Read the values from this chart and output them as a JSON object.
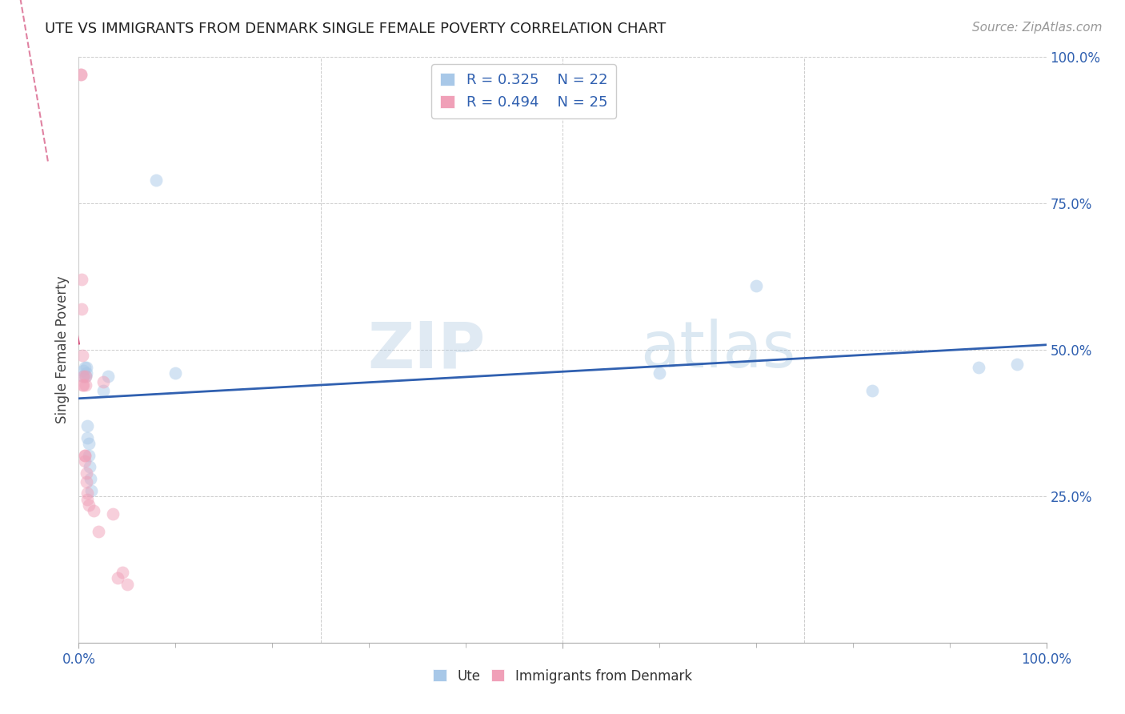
{
  "title": "UTE VS IMMIGRANTS FROM DENMARK SINGLE FEMALE POVERTY CORRELATION CHART",
  "source": "Source: ZipAtlas.com",
  "ylabel": "Single Female Poverty",
  "xlim": [
    0,
    1
  ],
  "ylim": [
    0,
    1
  ],
  "color_ute": "#a8c8e8",
  "color_denmark": "#f0a0b8",
  "color_line_ute": "#3060b0",
  "color_line_denmark": "#d04070",
  "watermark_text": "ZIP",
  "watermark_text2": "atlas",
  "legend_r1": "R = 0.325",
  "legend_n1": "N = 22",
  "legend_r2": "R = 0.494",
  "legend_n2": "N = 25",
  "ute_x": [
    0.005,
    0.005,
    0.006,
    0.007,
    0.008,
    0.008,
    0.009,
    0.009,
    0.01,
    0.01,
    0.011,
    0.012,
    0.013,
    0.025,
    0.03,
    0.08,
    0.1,
    0.6,
    0.7,
    0.82,
    0.93,
    0.97
  ],
  "ute_y": [
    0.455,
    0.465,
    0.47,
    0.455,
    0.46,
    0.47,
    0.37,
    0.35,
    0.34,
    0.32,
    0.3,
    0.28,
    0.26,
    0.43,
    0.455,
    0.79,
    0.46,
    0.46,
    0.61,
    0.43,
    0.47,
    0.475
  ],
  "denmark_x": [
    0.002,
    0.002,
    0.003,
    0.003,
    0.004,
    0.004,
    0.005,
    0.005,
    0.006,
    0.006,
    0.006,
    0.007,
    0.007,
    0.008,
    0.008,
    0.009,
    0.009,
    0.01,
    0.015,
    0.02,
    0.025,
    0.035,
    0.04,
    0.045,
    0.05
  ],
  "denmark_y": [
    0.97,
    0.97,
    0.57,
    0.62,
    0.44,
    0.49,
    0.44,
    0.455,
    0.32,
    0.32,
    0.31,
    0.455,
    0.44,
    0.29,
    0.275,
    0.255,
    0.245,
    0.235,
    0.225,
    0.19,
    0.445,
    0.22,
    0.11,
    0.12,
    0.1
  ],
  "marker_size": 130,
  "alpha": 0.5,
  "grid_color": "#cccccc",
  "background_color": "#ffffff",
  "title_fontsize": 13,
  "source_fontsize": 11,
  "tick_color": "#3060b0",
  "label_color": "#444444"
}
